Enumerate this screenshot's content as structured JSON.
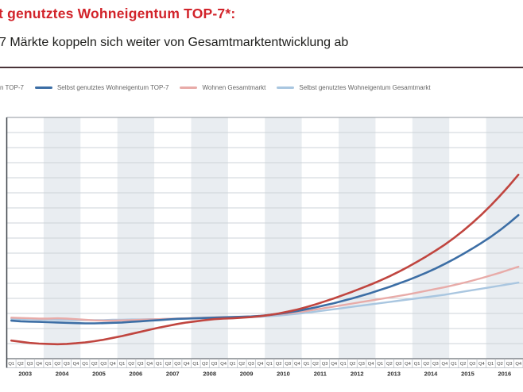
{
  "header": {
    "title": "t genutztes Wohneigentum TOP-7*:",
    "subtitle": "7 Märkte koppeln sich weiter von Gesamtmarktentwicklung ab"
  },
  "legend": {
    "items": [
      {
        "label": "n TOP-7",
        "color": "#c0453f",
        "swatch_visible": false
      },
      {
        "label": "Selbst genutztes Wohneigentum TOP-7",
        "color": "#3c6ea5",
        "swatch_visible": true
      },
      {
        "label": "Wohnen Gesamtmarkt",
        "color": "#e8aba8",
        "swatch_visible": true
      },
      {
        "label": "Selbst genutztes Wohneigentum Gesamtmarkt",
        "color": "#a9c6e0",
        "swatch_visible": true
      }
    ]
  },
  "colors": {
    "title_red": "#d2232a",
    "rule": "#4a3438",
    "year_band": "#e9edf1",
    "grid": "#cdd3d8",
    "axis": "#3f444a",
    "baseline": "#6a7076",
    "tick": "#b5bac0",
    "quarter_text": "#444444",
    "year_text": "#333333"
  },
  "chart_data": {
    "type": "line",
    "title": "t genutztes Wohneigentum TOP-7*:",
    "subtitle": "7 Märkte koppeln sich weiter von Gesamtmarktentwicklung ab",
    "x_years": [
      2003,
      2004,
      2005,
      2006,
      2007,
      2008,
      2009,
      2010,
      2011,
      2012,
      2013,
      2014,
      2015,
      2016
    ],
    "quarter_labels": [
      "Q1",
      "Q2",
      "Q3",
      "Q4"
    ],
    "ylim": [
      85,
      165
    ],
    "grid": true,
    "legend_position": "top",
    "series": [
      {
        "name": "n TOP-7",
        "color": "#c0453f",
        "width": 2.6,
        "z": 4,
        "values": [
          91.0,
          90.6,
          90.2,
          90.0,
          89.9,
          89.8,
          89.9,
          90.1,
          90.4,
          90.8,
          91.3,
          91.9,
          92.5,
          93.2,
          93.9,
          94.6,
          95.3,
          95.9,
          96.5,
          97.0,
          97.4,
          97.8,
          98.1,
          98.3,
          98.4,
          98.6,
          98.8,
          99.1,
          99.5,
          100.0,
          100.6,
          101.3,
          102.1,
          103.0,
          104.0,
          105.0,
          106.1,
          107.2,
          108.4,
          109.6,
          110.9,
          112.3,
          113.8,
          115.4,
          117.1,
          118.9,
          120.8,
          122.8,
          125.0,
          127.4,
          130.0,
          132.8,
          135.8,
          139.0,
          142.4,
          146.0
        ]
      },
      {
        "name": "Selbst genutztes Wohneigentum TOP-7",
        "color": "#3c6ea5",
        "width": 2.6,
        "z": 3,
        "values": [
          97.6,
          97.4,
          97.3,
          97.2,
          97.1,
          97.0,
          96.9,
          96.8,
          96.7,
          96.7,
          96.8,
          96.9,
          97.0,
          97.2,
          97.4,
          97.6,
          97.8,
          98.0,
          98.2,
          98.3,
          98.4,
          98.5,
          98.6,
          98.7,
          98.8,
          98.9,
          99.0,
          99.2,
          99.5,
          99.9,
          100.3,
          100.8,
          101.4,
          102.0,
          102.7,
          103.4,
          104.2,
          105.0,
          105.9,
          106.8,
          107.8,
          108.8,
          109.9,
          111.0,
          112.2,
          113.5,
          114.9,
          116.4,
          118.0,
          119.7,
          121.5,
          123.4,
          125.4,
          127.6,
          130.0,
          132.6
        ]
      },
      {
        "name": "Wohnen Gesamtmarkt",
        "color": "#e8aba8",
        "width": 2.4,
        "z": 2,
        "values": [
          98.6,
          98.5,
          98.4,
          98.3,
          98.3,
          98.4,
          98.3,
          98.1,
          97.9,
          97.7,
          97.6,
          97.6,
          97.7,
          97.8,
          97.9,
          98.0,
          98.1,
          98.2,
          98.3,
          98.4,
          98.5,
          98.6,
          98.7,
          98.8,
          98.8,
          98.9,
          99.0,
          99.2,
          99.4,
          99.7,
          100.0,
          100.4,
          100.8,
          101.3,
          101.8,
          102.3,
          102.8,
          103.3,
          103.8,
          104.3,
          104.8,
          105.3,
          105.8,
          106.3,
          106.9,
          107.5,
          108.1,
          108.7,
          109.4,
          110.1,
          110.9,
          111.7,
          112.6,
          113.5,
          114.5,
          115.5
        ]
      },
      {
        "name": "Selbst genutztes Wohneigentum Gesamtmarkt",
        "color": "#a9c6e0",
        "width": 2.4,
        "z": 1,
        "values": [
          98.2,
          98.1,
          98.1,
          98.0,
          98.0,
          97.9,
          97.9,
          97.8,
          97.8,
          97.8,
          97.8,
          97.9,
          97.9,
          98.0,
          98.0,
          98.1,
          98.1,
          98.2,
          98.2,
          98.3,
          98.4,
          98.4,
          98.5,
          98.6,
          98.6,
          98.7,
          98.8,
          98.9,
          99.1,
          99.3,
          99.6,
          99.9,
          100.2,
          100.6,
          101.0,
          101.4,
          101.8,
          102.2,
          102.6,
          103.0,
          103.4,
          103.8,
          104.2,
          104.6,
          105.0,
          105.4,
          105.8,
          106.2,
          106.7,
          107.2,
          107.7,
          108.2,
          108.7,
          109.2,
          109.7,
          110.2
        ]
      }
    ]
  }
}
